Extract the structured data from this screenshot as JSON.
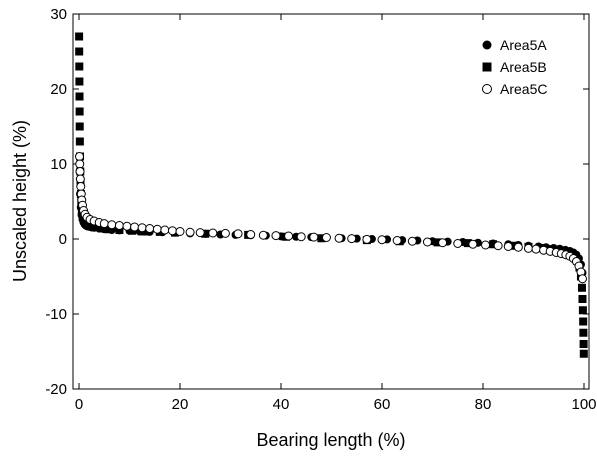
{
  "chart_data": {
    "type": "scatter",
    "title": "",
    "xlabel": "Bearing length (%)",
    "ylabel": "Unscaled height (%)",
    "xlim": [
      0,
      100
    ],
    "ylim": [
      -20,
      30
    ],
    "xticks": [
      "0",
      "20",
      "40",
      "60",
      "80",
      "100"
    ],
    "yticks": [
      "-20",
      "-10",
      "0",
      "10",
      "20",
      "30"
    ],
    "grid": false,
    "legend_position": "top-right",
    "series": [
      {
        "name": "Area5A",
        "marker": "filled-circle",
        "color": "#000000",
        "points": [
          [
            0.1,
            9.0
          ],
          [
            0.2,
            6.0
          ],
          [
            0.35,
            4.2
          ],
          [
            0.5,
            3.2
          ],
          [
            0.7,
            2.6
          ],
          [
            0.9,
            2.2
          ],
          [
            1.2,
            1.9
          ],
          [
            1.6,
            1.7
          ],
          [
            2.2,
            1.6
          ],
          [
            3,
            1.5
          ],
          [
            4,
            1.4
          ],
          [
            5,
            1.3
          ],
          [
            6.5,
            1.2
          ],
          [
            8,
            1.15
          ],
          [
            10,
            1.1
          ],
          [
            12,
            1.0
          ],
          [
            14,
            0.95
          ],
          [
            16.5,
            0.9
          ],
          [
            19,
            0.85
          ],
          [
            22,
            0.75
          ],
          [
            25,
            0.7
          ],
          [
            28,
            0.6
          ],
          [
            31,
            0.55
          ],
          [
            34,
            0.5
          ],
          [
            37,
            0.45
          ],
          [
            40,
            0.35
          ],
          [
            43,
            0.3
          ],
          [
            46,
            0.25
          ],
          [
            49,
            0.2
          ],
          [
            52,
            0.1
          ],
          [
            55,
            0.05
          ],
          [
            58,
            0.0
          ],
          [
            61,
            -0.05
          ],
          [
            64,
            -0.15
          ],
          [
            67,
            -0.2
          ],
          [
            70,
            -0.3
          ],
          [
            73,
            -0.35
          ],
          [
            76,
            -0.4
          ],
          [
            79,
            -0.5
          ],
          [
            82,
            -0.6
          ],
          [
            85,
            -0.7
          ],
          [
            87,
            -0.8
          ],
          [
            89,
            -0.9
          ],
          [
            91,
            -1.0
          ],
          [
            92.5,
            -1.1
          ],
          [
            94,
            -1.2
          ],
          [
            95.2,
            -1.3
          ],
          [
            96.3,
            -1.45
          ],
          [
            97.2,
            -1.6
          ],
          [
            97.9,
            -1.8
          ],
          [
            98.5,
            -2.1
          ],
          [
            99.0,
            -2.6
          ],
          [
            99.4,
            -3.4
          ],
          [
            99.7,
            -4.5
          ]
        ]
      },
      {
        "name": "Area5B",
        "marker": "filled-square",
        "color": "#000000",
        "points": [
          [
            0.02,
            27.0
          ],
          [
            0.04,
            25.0
          ],
          [
            0.06,
            23.0
          ],
          [
            0.08,
            21.0
          ],
          [
            0.1,
            19.0
          ],
          [
            0.12,
            17.0
          ],
          [
            0.14,
            15.0
          ],
          [
            0.17,
            13.0
          ],
          [
            0.2,
            11.0
          ],
          [
            0.25,
            9.0
          ],
          [
            0.3,
            7.5
          ],
          [
            0.38,
            6.0
          ],
          [
            0.46,
            5.0
          ],
          [
            0.56,
            4.0
          ],
          [
            0.7,
            3.3
          ],
          [
            0.9,
            2.7
          ],
          [
            1.2,
            2.2
          ],
          [
            1.6,
            1.9
          ],
          [
            2.2,
            1.7
          ],
          [
            3,
            1.55
          ],
          [
            4.5,
            1.4
          ],
          [
            6,
            1.3
          ],
          [
            8,
            1.2
          ],
          [
            10.5,
            1.1
          ],
          [
            13,
            1.0
          ],
          [
            16,
            0.95
          ],
          [
            19,
            0.85
          ],
          [
            25,
            0.7
          ],
          [
            33.5,
            0.55
          ],
          [
            41,
            0.3
          ],
          [
            48,
            0.1
          ],
          [
            57,
            -0.15
          ],
          [
            63.5,
            -0.3
          ],
          [
            71,
            -0.45
          ],
          [
            77,
            -0.55
          ],
          [
            82,
            -0.7
          ],
          [
            86,
            -0.9
          ],
          [
            89,
            -1.05
          ],
          [
            91.5,
            -1.2
          ],
          [
            93.5,
            -1.35
          ],
          [
            95,
            -1.5
          ],
          [
            96.2,
            -1.7
          ],
          [
            97.2,
            -1.95
          ],
          [
            98,
            -2.3
          ],
          [
            98.6,
            -2.9
          ],
          [
            99.1,
            -3.8
          ],
          [
            99.4,
            -5.0
          ],
          [
            99.6,
            -6.5
          ],
          [
            99.7,
            -8.0
          ],
          [
            99.78,
            -9.5
          ],
          [
            99.84,
            -11.0
          ],
          [
            99.88,
            -12.5
          ],
          [
            99.92,
            -14.0
          ],
          [
            99.96,
            -15.3
          ]
        ]
      },
      {
        "name": "Area5C",
        "marker": "open-circle",
        "color": "#000000",
        "points": [
          [
            0.1,
            11.0
          ],
          [
            0.15,
            10.0
          ],
          [
            0.2,
            9.0
          ],
          [
            0.27,
            8.0
          ],
          [
            0.35,
            7.0
          ],
          [
            0.45,
            6.0
          ],
          [
            0.55,
            5.2
          ],
          [
            0.7,
            4.5
          ],
          [
            0.9,
            3.8
          ],
          [
            1.2,
            3.3
          ],
          [
            1.6,
            2.9
          ],
          [
            2.2,
            2.6
          ],
          [
            3,
            2.4
          ],
          [
            4,
            2.2
          ],
          [
            5,
            2.05
          ],
          [
            6.5,
            1.9
          ],
          [
            8,
            1.8
          ],
          [
            9.5,
            1.7
          ],
          [
            11,
            1.6
          ],
          [
            12.5,
            1.5
          ],
          [
            14,
            1.4
          ],
          [
            15.5,
            1.3
          ],
          [
            17,
            1.2
          ],
          [
            18.5,
            1.1
          ],
          [
            20,
            1.0
          ],
          [
            22,
            0.9
          ],
          [
            24,
            0.85
          ],
          [
            26.5,
            0.8
          ],
          [
            29,
            0.75
          ],
          [
            31.5,
            0.7
          ],
          [
            34,
            0.6
          ],
          [
            36.5,
            0.5
          ],
          [
            39,
            0.45
          ],
          [
            41.5,
            0.4
          ],
          [
            44,
            0.3
          ],
          [
            46.5,
            0.25
          ],
          [
            49,
            0.2
          ],
          [
            51.5,
            0.1
          ],
          [
            54,
            0.05
          ],
          [
            57,
            -0.05
          ],
          [
            60,
            -0.1
          ],
          [
            63,
            -0.2
          ],
          [
            66,
            -0.3
          ],
          [
            69,
            -0.4
          ],
          [
            72,
            -0.5
          ],
          [
            75,
            -0.6
          ],
          [
            78,
            -0.7
          ],
          [
            80.5,
            -0.8
          ],
          [
            83,
            -0.9
          ],
          [
            85,
            -1.0
          ],
          [
            87,
            -1.1
          ],
          [
            89,
            -1.25
          ],
          [
            90.5,
            -1.35
          ],
          [
            92,
            -1.5
          ],
          [
            93.3,
            -1.65
          ],
          [
            94.5,
            -1.8
          ],
          [
            95.5,
            -1.95
          ],
          [
            96.4,
            -2.1
          ],
          [
            97.2,
            -2.3
          ],
          [
            97.9,
            -2.6
          ],
          [
            98.5,
            -3.0
          ],
          [
            99.0,
            -3.6
          ],
          [
            99.4,
            -4.4
          ],
          [
            99.7,
            -5.3
          ]
        ]
      }
    ]
  }
}
